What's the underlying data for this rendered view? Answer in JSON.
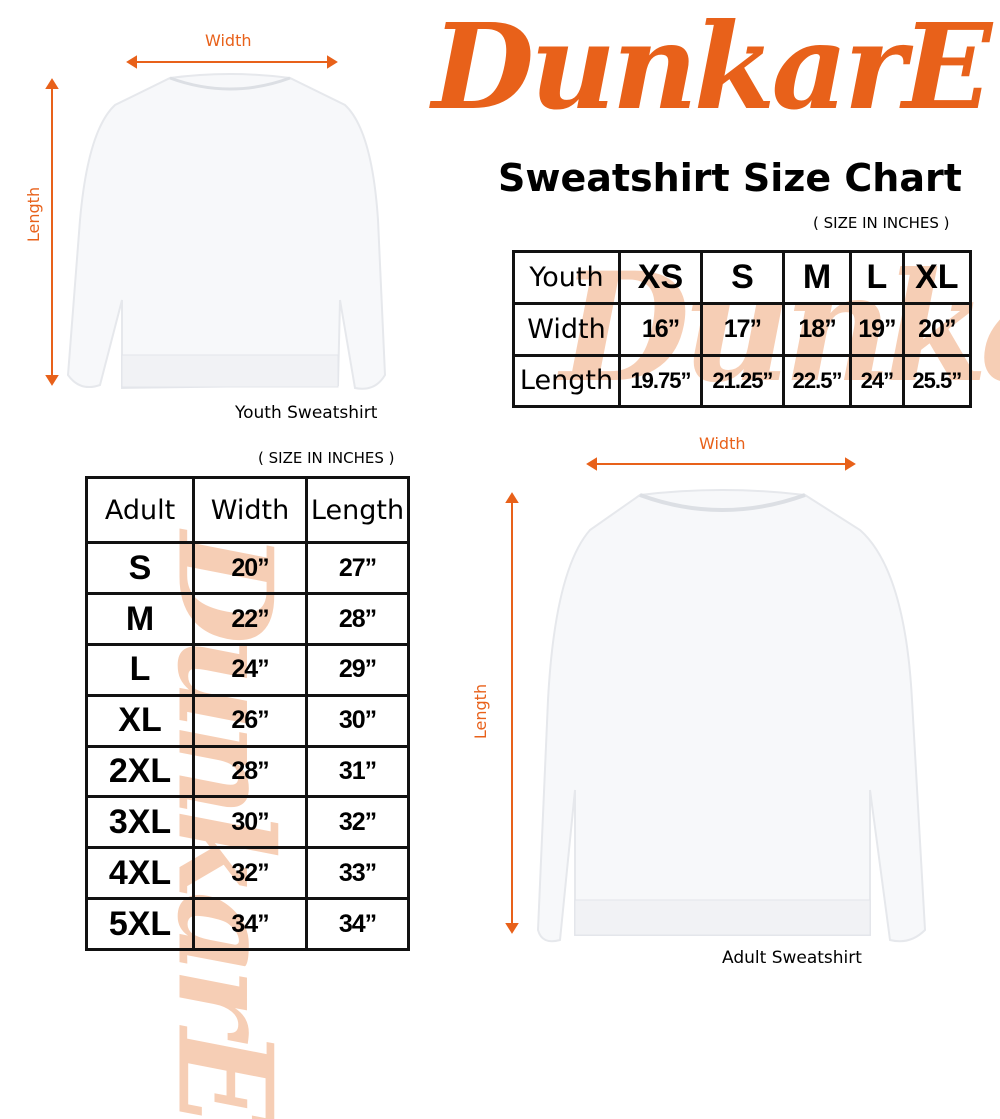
{
  "brand": {
    "logo_text": "DunkarE",
    "accent": "#e8611a",
    "watermark_color": "#f5c3a3"
  },
  "title": "Sweatshirt Size Chart",
  "youth": {
    "image_caption": "Youth Sweatshirt",
    "width_label": "Width",
    "length_label": "Length",
    "units_note": "( SIZE IN INCHES )",
    "table": {
      "header": [
        "Youth",
        "XS",
        "S",
        "M",
        "L",
        "XL"
      ],
      "rows": [
        [
          "Width",
          "16”",
          "17”",
          "18”",
          "19”",
          "20”"
        ],
        [
          "Length",
          "19.75”",
          "21.25”",
          "22.5”",
          "24”",
          "25.5”"
        ]
      ]
    }
  },
  "adult": {
    "image_caption": "Adult Sweatshirt",
    "width_label": "Width",
    "length_label": "Length",
    "units_note": "( SIZE IN INCHES )",
    "table": {
      "header": [
        "Adult",
        "Width",
        "Length"
      ],
      "rows": [
        [
          "S",
          "20”",
          "27”"
        ],
        [
          "M",
          "22”",
          "28”"
        ],
        [
          "L",
          "24”",
          "29”"
        ],
        [
          "XL",
          "26”",
          "30”"
        ],
        [
          "2XL",
          "28”",
          "31”"
        ],
        [
          "3XL",
          "30”",
          "32”"
        ],
        [
          "4XL",
          "32”",
          "33”"
        ],
        [
          "5XL",
          "34”",
          "34”"
        ]
      ]
    }
  }
}
